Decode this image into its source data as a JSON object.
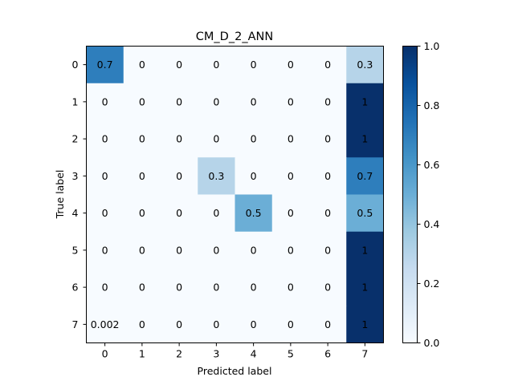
{
  "chart_data": {
    "type": "heatmap",
    "title": "CM_D_2_ANN",
    "xlabel": "Predicted label",
    "ylabel": "True label",
    "x_categories": [
      "0",
      "1",
      "2",
      "3",
      "4",
      "5",
      "6",
      "7"
    ],
    "y_categories": [
      "0",
      "1",
      "2",
      "3",
      "4",
      "5",
      "6",
      "7"
    ],
    "values": [
      [
        0.7,
        0,
        0,
        0,
        0,
        0,
        0,
        0.3
      ],
      [
        0,
        0,
        0,
        0,
        0,
        0,
        0,
        1
      ],
      [
        0,
        0,
        0,
        0,
        0,
        0,
        0,
        1
      ],
      [
        0,
        0,
        0,
        0.3,
        0,
        0,
        0,
        0.7
      ],
      [
        0,
        0,
        0,
        0,
        0.5,
        0,
        0,
        0.5
      ],
      [
        0,
        0,
        0,
        0,
        0,
        0,
        0,
        1
      ],
      [
        0,
        0,
        0,
        0,
        0,
        0,
        0,
        1
      ],
      [
        0.002,
        0,
        0,
        0,
        0,
        0,
        0,
        1
      ]
    ],
    "cell_labels": [
      [
        "0.7",
        "0",
        "0",
        "0",
        "0",
        "0",
        "0",
        "0.3"
      ],
      [
        "0",
        "0",
        "0",
        "0",
        "0",
        "0",
        "0",
        "1"
      ],
      [
        "0",
        "0",
        "0",
        "0",
        "0",
        "0",
        "0",
        "1"
      ],
      [
        "0",
        "0",
        "0",
        "0.3",
        "0",
        "0",
        "0",
        "0.7"
      ],
      [
        "0",
        "0",
        "0",
        "0",
        "0.5",
        "0",
        "0",
        "0.5"
      ],
      [
        "0",
        "0",
        "0",
        "0",
        "0",
        "0",
        "0",
        "1"
      ],
      [
        "0",
        "0",
        "0",
        "0",
        "0",
        "0",
        "0",
        "1"
      ],
      [
        "0.002",
        "0",
        "0",
        "0",
        "0",
        "0",
        "0",
        "1"
      ]
    ],
    "colormap": "Blues",
    "colorbar": {
      "range": [
        0,
        1
      ],
      "ticks": [
        0,
        0.2,
        0.4,
        0.6,
        0.8,
        1
      ],
      "tick_labels": [
        "0.0",
        "0.2",
        "0.4",
        "0.6",
        "0.8",
        "1.0"
      ]
    },
    "colors": {
      "low": "#f7fbff",
      "high": "#08306b",
      "text_on_light": "#08306b",
      "text_on_dark": "#f7fbff"
    }
  }
}
